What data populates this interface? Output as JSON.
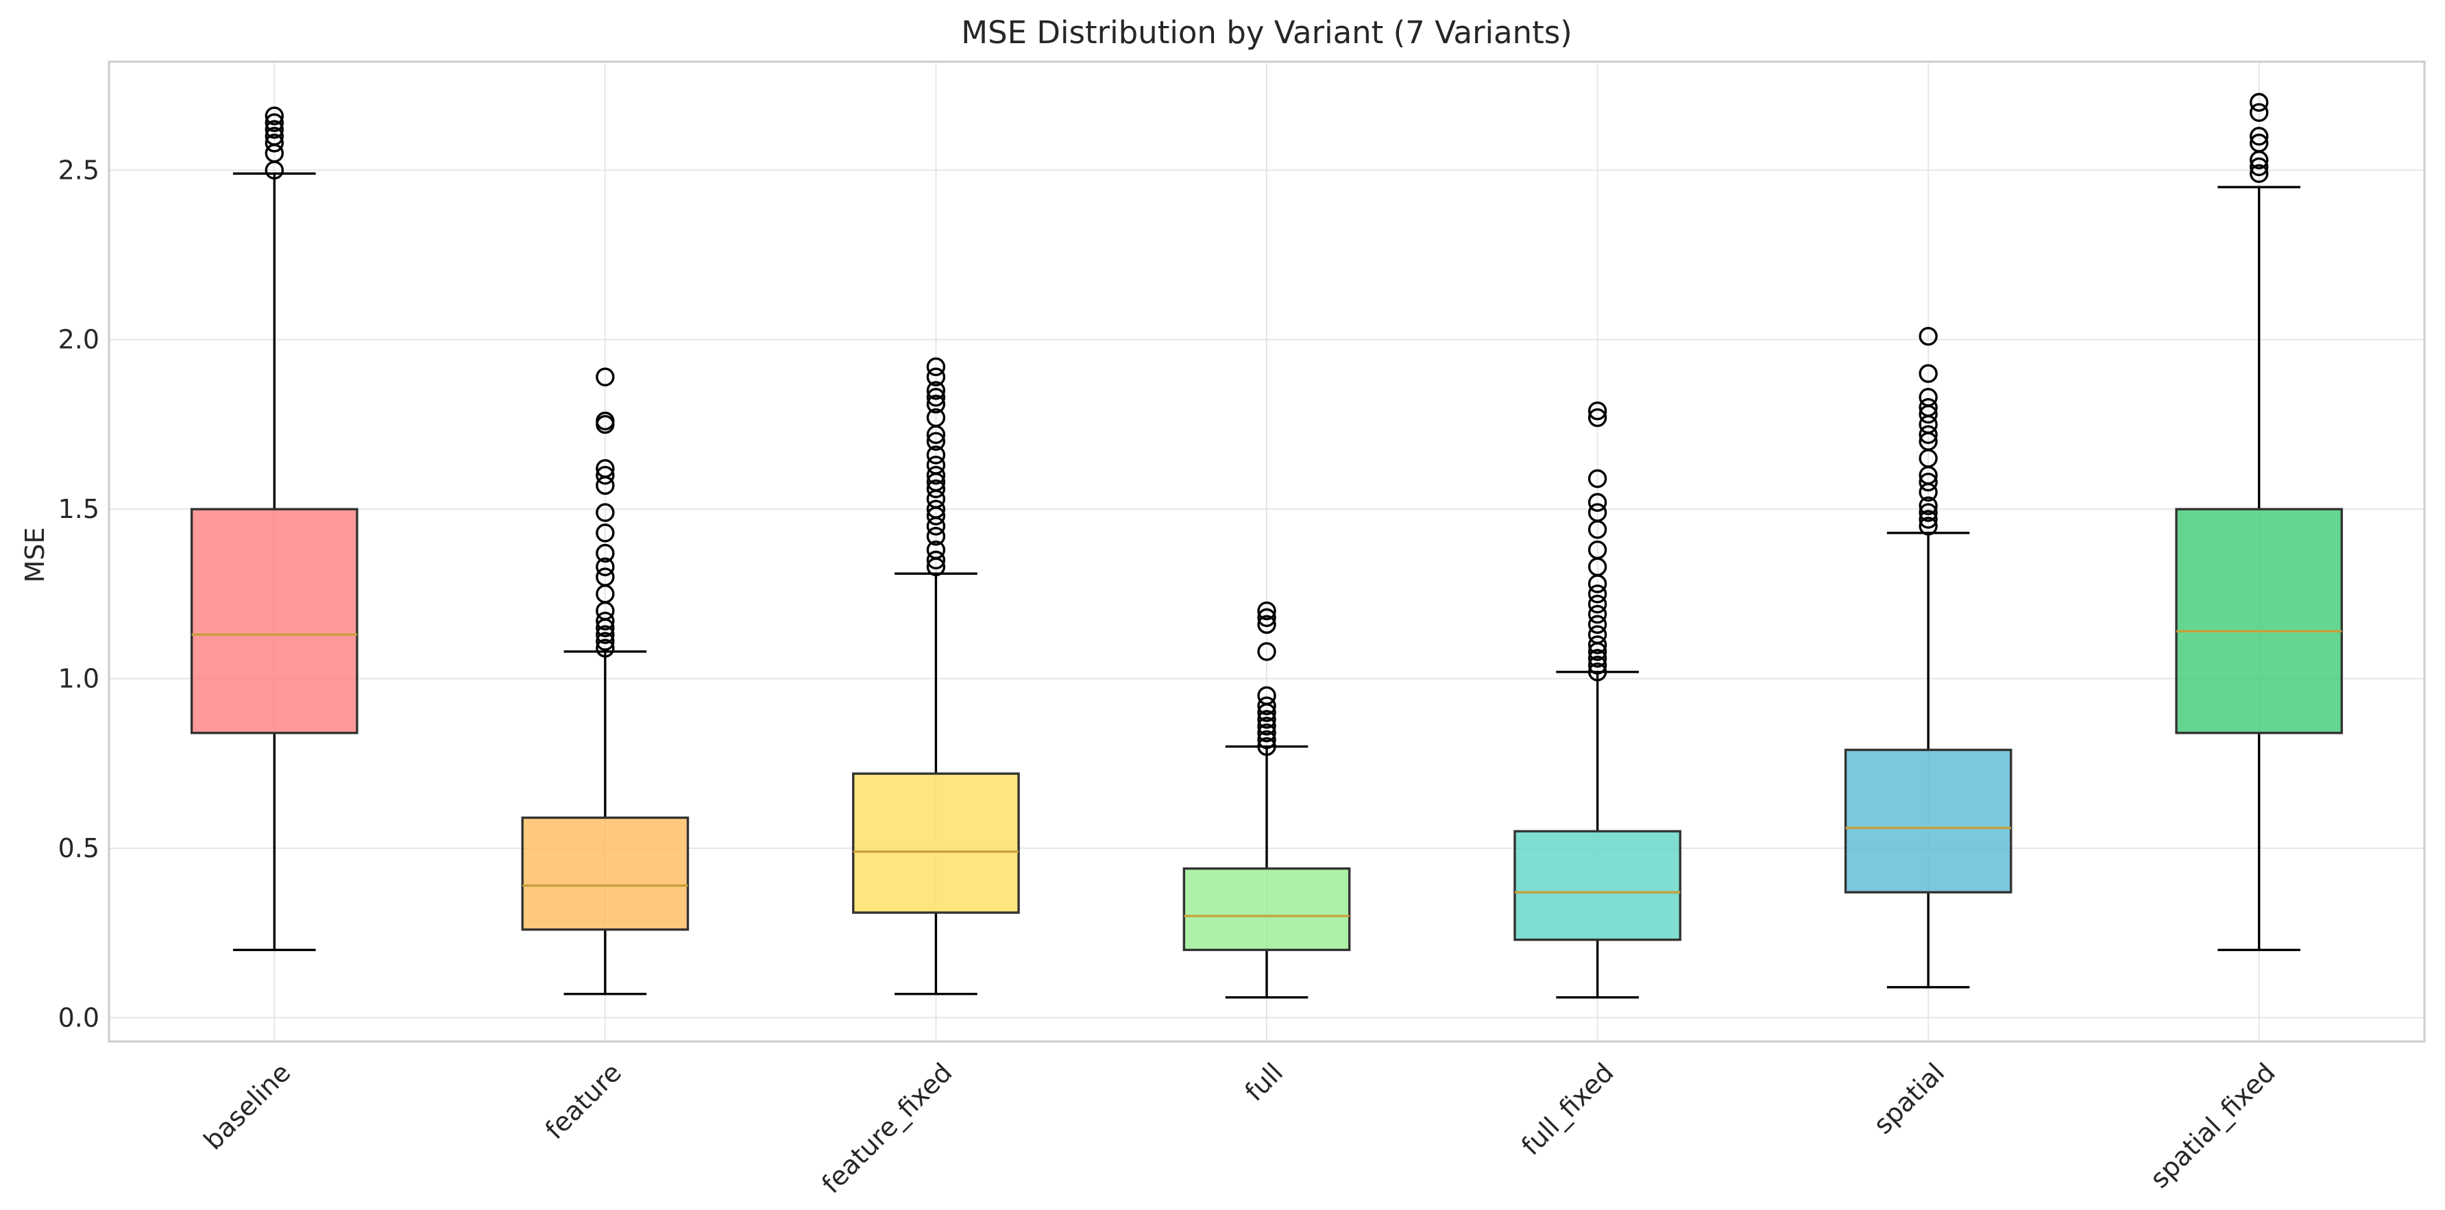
{
  "chart_data": {
    "type": "box",
    "title": "MSE Distribution by Variant (7 Variants)",
    "xlabel": "",
    "ylabel": "MSE",
    "ylim": [
      -0.07,
      2.82
    ],
    "yticks": [
      "0.0",
      "0.5",
      "1.0",
      "1.5",
      "2.0",
      "2.5"
    ],
    "grid": true,
    "categories": [
      "baseline",
      "feature",
      "feature_fixed",
      "full",
      "full_fixed",
      "spatial",
      "spatial_fixed"
    ],
    "series": [
      {
        "category": "baseline",
        "color": "#ff7f7f",
        "whisker_low": 0.2,
        "q1": 0.84,
        "median": 1.13,
        "q3": 1.5,
        "whisker_high": 2.49,
        "outliers": [
          2.5,
          2.55,
          2.58,
          2.6,
          2.62,
          2.64,
          2.66
        ]
      },
      {
        "category": "feature",
        "color": "#ffbb5c",
        "whisker_low": 0.07,
        "q1": 0.26,
        "median": 0.39,
        "q3": 0.59,
        "whisker_high": 1.08,
        "outliers": [
          1.09,
          1.11,
          1.13,
          1.15,
          1.17,
          1.2,
          1.25,
          1.3,
          1.33,
          1.37,
          1.43,
          1.49,
          1.57,
          1.6,
          1.62,
          1.75,
          1.76,
          1.89
        ]
      },
      {
        "category": "feature_fixed",
        "color": "#ffdf5c",
        "whisker_low": 0.07,
        "q1": 0.31,
        "median": 0.49,
        "q3": 0.72,
        "whisker_high": 1.31,
        "outliers": [
          1.33,
          1.35,
          1.38,
          1.42,
          1.45,
          1.48,
          1.5,
          1.53,
          1.56,
          1.58,
          1.6,
          1.63,
          1.66,
          1.7,
          1.72,
          1.77,
          1.81,
          1.83,
          1.85,
          1.89,
          1.92
        ]
      },
      {
        "category": "full",
        "color": "#98ee90",
        "whisker_low": 0.06,
        "q1": 0.2,
        "median": 0.3,
        "q3": 0.44,
        "whisker_high": 0.8,
        "outliers": [
          0.8,
          0.82,
          0.84,
          0.86,
          0.88,
          0.9,
          0.92,
          0.95,
          1.08,
          1.16,
          1.18,
          1.2
        ]
      },
      {
        "category": "full_fixed",
        "color": "#5fd6c6",
        "whisker_low": 0.06,
        "q1": 0.23,
        "median": 0.37,
        "q3": 0.55,
        "whisker_high": 1.02,
        "outliers": [
          1.02,
          1.04,
          1.06,
          1.08,
          1.1,
          1.13,
          1.16,
          1.19,
          1.22,
          1.25,
          1.28,
          1.33,
          1.38,
          1.44,
          1.49,
          1.52,
          1.59,
          1.77,
          1.79
        ]
      },
      {
        "category": "spatial",
        "color": "#5ab9d6",
        "whisker_low": 0.09,
        "q1": 0.37,
        "median": 0.56,
        "q3": 0.79,
        "whisker_high": 1.43,
        "outliers": [
          1.45,
          1.47,
          1.49,
          1.51,
          1.55,
          1.58,
          1.6,
          1.65,
          1.7,
          1.72,
          1.75,
          1.78,
          1.8,
          1.83,
          1.9,
          2.01
        ]
      },
      {
        "category": "spatial_fixed",
        "color": "#3ecc76",
        "whisker_low": 0.2,
        "q1": 0.84,
        "median": 1.14,
        "q3": 1.5,
        "whisker_high": 2.45,
        "outliers": [
          2.49,
          2.51,
          2.53,
          2.58,
          2.6,
          2.67,
          2.7
        ]
      }
    ]
  }
}
